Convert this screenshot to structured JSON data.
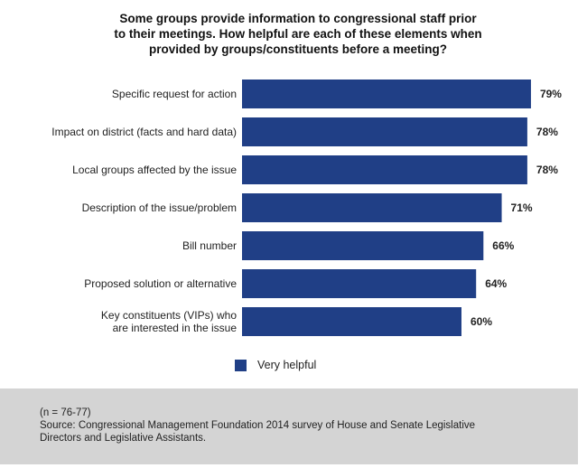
{
  "chart_data": {
    "type": "bar",
    "orientation": "horizontal",
    "title": [
      "Some groups provide information to congressional staff prior",
      "to their meetings. How helpful are each of these elements when",
      "provided by groups/constituents before a meeting?"
    ],
    "categories": [
      [
        "Specific request for action"
      ],
      [
        "Impact on district (facts and hard data)"
      ],
      [
        "Local groups affected by the issue"
      ],
      [
        "Description of the issue/problem"
      ],
      [
        "Bill number"
      ],
      [
        "Proposed solution or alternative"
      ],
      [
        "Key constituents (VIPs) who",
        "are interested in the issue"
      ]
    ],
    "values": [
      79,
      78,
      78,
      71,
      66,
      64,
      60
    ],
    "value_labels": [
      "79%",
      "78%",
      "78%",
      "71%",
      "66%",
      "64%",
      "60%"
    ],
    "series": [
      {
        "name": "Very helpful",
        "values": [
          79,
          78,
          78,
          71,
          66,
          64,
          60
        ]
      }
    ],
    "xlim": [
      0,
      100
    ],
    "legend": "bottom-center",
    "bar_color": "#203f86"
  },
  "footer": {
    "n": "(n = 76-77)",
    "source": "Source: Congressional Management Foundation 2014 survey of House and Senate Legislative\nDirectors and Legislative Assistants."
  }
}
